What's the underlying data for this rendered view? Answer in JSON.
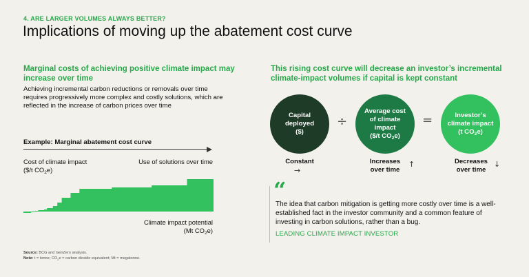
{
  "header": {
    "eyebrow": "4. ARE LARGER VOLUMES ALWAYS BETTER?",
    "title": "Implications of moving up the abatement cost curve"
  },
  "left": {
    "heading": "Marginal costs of achieving positive climate impact may increase over time",
    "body": "Achieving incremental carbon reductions or removals over time requires progressively more complex and costly solutions, which are reflected in the increase of carbon prices over time",
    "example_label": "Example: Marginal abatement cost curve",
    "y_label_line1": "Cost of climate impact",
    "y_label_line2_pre": "($/t CO",
    "y_label_line2_sub": "2",
    "y_label_line2_post": "e)",
    "time_label": "Use of solutions over time",
    "x_label_line1": "Climate impact potential",
    "x_label_line2_pre": "(Mt CO",
    "x_label_line2_sub": "2",
    "x_label_line2_post": "e)"
  },
  "chart_data": {
    "type": "bar",
    "description_note": "",
    "x": [
      0,
      5,
      8,
      10,
      14,
      16,
      20,
      23,
      26,
      32,
      38,
      60,
      87,
      111
    ],
    "values": [
      -2,
      -1,
      1,
      2,
      3,
      5,
      8,
      13,
      20,
      27,
      33,
      35,
      38,
      47
    ],
    "widths": [
      5,
      3,
      2,
      4,
      2,
      4,
      3,
      3,
      6,
      6,
      22,
      27,
      24,
      18
    ],
    "color": "#33c05e"
  },
  "right": {
    "heading": "This rising cost curve will decrease an investor’s incremental climate-impact volumes if capital is kept constant",
    "circle1_line1": "Capital",
    "circle1_line2": "deployed",
    "circle1_line3": "($)",
    "circle2_line1": "Average cost",
    "circle2_line2": "of climate",
    "circle2_line3": "impact",
    "circle2_line4_pre": "($/t CO",
    "circle2_line4_sub": "2",
    "circle2_line4_post": "e)",
    "circle3_line1": "Investor’s",
    "circle3_line2": "climate impact",
    "circle3_line3_pre": "(t CO",
    "circle3_line3_sub": "2",
    "circle3_line3_post": "e)",
    "divide_symbol": "÷",
    "equals_symbol": "=",
    "label1": "Constant",
    "label2_line1": "Increases",
    "label2_line2": "over time",
    "label3_line1": "Decreases",
    "label3_line2": "over time",
    "label1_glyph": "→",
    "label2_glyph": "↑",
    "label3_glyph": "↓",
    "quote_mark": "“",
    "quote": "The idea that carbon mitigation is getting more costly over time is a well-established fact in the investor community and a common feature of investing in carbon solutions, rather than a bug.",
    "attribution": "LEADING CLIMATE IMPACT INVESTOR"
  },
  "footer": {
    "source_label": "Source:",
    "source_text": " BCG and GenZero analysis.",
    "note_label": "Note:",
    "note_pre": " t = tonne; CO",
    "note_sub": "2",
    "note_post": "e = carbon dioxide equivalent; Mt = megatonne."
  },
  "colors": {
    "accent_green": "#27a84a",
    "dark_green": "#1d3b26",
    "mid_green": "#1d7a45",
    "bright_green": "#33c05e"
  }
}
